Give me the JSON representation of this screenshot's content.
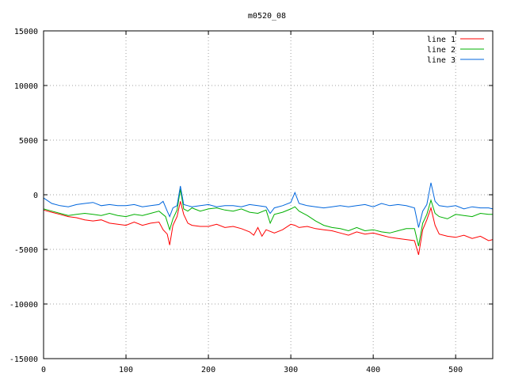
{
  "chart_data": {
    "type": "line",
    "title": "m0520_08",
    "xlabel": "",
    "ylabel": "",
    "xlim": [
      0,
      545
    ],
    "ylim": [
      -15000,
      15000
    ],
    "xticks": [
      0,
      100,
      200,
      300,
      400,
      500
    ],
    "yticks": [
      -15000,
      -10000,
      -5000,
      0,
      5000,
      10000,
      15000
    ],
    "grid": true,
    "legend_position": "top-right",
    "series": [
      {
        "name": "line 1",
        "color": "#ff0000",
        "points": [
          [
            0,
            -1400
          ],
          [
            10,
            -1600
          ],
          [
            20,
            -1800
          ],
          [
            30,
            -2000
          ],
          [
            40,
            -2100
          ],
          [
            50,
            -2300
          ],
          [
            60,
            -2400
          ],
          [
            70,
            -2300
          ],
          [
            80,
            -2600
          ],
          [
            90,
            -2700
          ],
          [
            100,
            -2800
          ],
          [
            110,
            -2500
          ],
          [
            120,
            -2800
          ],
          [
            130,
            -2600
          ],
          [
            140,
            -2500
          ],
          [
            145,
            -3200
          ],
          [
            150,
            -3600
          ],
          [
            153,
            -4600
          ],
          [
            157,
            -2800
          ],
          [
            162,
            -2000
          ],
          [
            166,
            -600
          ],
          [
            170,
            -1800
          ],
          [
            175,
            -2600
          ],
          [
            180,
            -2800
          ],
          [
            190,
            -2900
          ],
          [
            200,
            -2900
          ],
          [
            210,
            -2700
          ],
          [
            220,
            -3000
          ],
          [
            230,
            -2900
          ],
          [
            240,
            -3100
          ],
          [
            250,
            -3400
          ],
          [
            255,
            -3700
          ],
          [
            260,
            -3000
          ],
          [
            265,
            -3800
          ],
          [
            270,
            -3200
          ],
          [
            280,
            -3500
          ],
          [
            290,
            -3200
          ],
          [
            300,
            -2700
          ],
          [
            305,
            -2800
          ],
          [
            310,
            -3000
          ],
          [
            320,
            -2900
          ],
          [
            330,
            -3100
          ],
          [
            340,
            -3200
          ],
          [
            350,
            -3300
          ],
          [
            360,
            -3500
          ],
          [
            370,
            -3700
          ],
          [
            380,
            -3400
          ],
          [
            390,
            -3600
          ],
          [
            400,
            -3500
          ],
          [
            410,
            -3700
          ],
          [
            420,
            -3900
          ],
          [
            430,
            -4000
          ],
          [
            440,
            -4100
          ],
          [
            450,
            -4200
          ],
          [
            455,
            -5500
          ],
          [
            460,
            -3200
          ],
          [
            465,
            -2300
          ],
          [
            470,
            -1200
          ],
          [
            475,
            -2800
          ],
          [
            480,
            -3600
          ],
          [
            490,
            -3800
          ],
          [
            500,
            -3900
          ],
          [
            510,
            -3700
          ],
          [
            520,
            -4000
          ],
          [
            530,
            -3800
          ],
          [
            540,
            -4200
          ],
          [
            545,
            -4100
          ]
        ]
      },
      {
        "name": "line 2",
        "color": "#00b000",
        "points": [
          [
            0,
            -1300
          ],
          [
            10,
            -1500
          ],
          [
            20,
            -1700
          ],
          [
            30,
            -1900
          ],
          [
            40,
            -1800
          ],
          [
            50,
            -1700
          ],
          [
            60,
            -1800
          ],
          [
            70,
            -1900
          ],
          [
            80,
            -1700
          ],
          [
            90,
            -1900
          ],
          [
            100,
            -2000
          ],
          [
            110,
            -1800
          ],
          [
            120,
            -1900
          ],
          [
            130,
            -1700
          ],
          [
            140,
            -1500
          ],
          [
            148,
            -2000
          ],
          [
            153,
            -3200
          ],
          [
            157,
            -2200
          ],
          [
            162,
            -1400
          ],
          [
            166,
            500
          ],
          [
            170,
            -1300
          ],
          [
            175,
            -1500
          ],
          [
            180,
            -1200
          ],
          [
            190,
            -1500
          ],
          [
            200,
            -1300
          ],
          [
            210,
            -1200
          ],
          [
            220,
            -1400
          ],
          [
            230,
            -1500
          ],
          [
            240,
            -1300
          ],
          [
            250,
            -1600
          ],
          [
            260,
            -1700
          ],
          [
            270,
            -1400
          ],
          [
            275,
            -2600
          ],
          [
            280,
            -1800
          ],
          [
            290,
            -1600
          ],
          [
            300,
            -1300
          ],
          [
            305,
            -1100
          ],
          [
            310,
            -1500
          ],
          [
            320,
            -1900
          ],
          [
            330,
            -2400
          ],
          [
            340,
            -2800
          ],
          [
            350,
            -3000
          ],
          [
            360,
            -3100
          ],
          [
            370,
            -3300
          ],
          [
            380,
            -3000
          ],
          [
            390,
            -3300
          ],
          [
            400,
            -3200
          ],
          [
            410,
            -3400
          ],
          [
            420,
            -3500
          ],
          [
            430,
            -3300
          ],
          [
            440,
            -3100
          ],
          [
            450,
            -3100
          ],
          [
            455,
            -4700
          ],
          [
            460,
            -2600
          ],
          [
            465,
            -1800
          ],
          [
            470,
            -500
          ],
          [
            475,
            -1700
          ],
          [
            480,
            -2000
          ],
          [
            490,
            -2200
          ],
          [
            500,
            -1800
          ],
          [
            510,
            -1900
          ],
          [
            520,
            -2000
          ],
          [
            530,
            -1700
          ],
          [
            540,
            -1800
          ],
          [
            545,
            -1800
          ]
        ]
      },
      {
        "name": "line 3",
        "color": "#0066dd",
        "points": [
          [
            0,
            -300
          ],
          [
            10,
            -800
          ],
          [
            20,
            -1000
          ],
          [
            30,
            -1100
          ],
          [
            40,
            -900
          ],
          [
            50,
            -800
          ],
          [
            60,
            -700
          ],
          [
            70,
            -1000
          ],
          [
            80,
            -900
          ],
          [
            90,
            -1000
          ],
          [
            100,
            -1000
          ],
          [
            110,
            -900
          ],
          [
            120,
            -1100
          ],
          [
            130,
            -1000
          ],
          [
            140,
            -900
          ],
          [
            145,
            -600
          ],
          [
            150,
            -1500
          ],
          [
            153,
            -2000
          ],
          [
            157,
            -1200
          ],
          [
            162,
            -1000
          ],
          [
            166,
            800
          ],
          [
            170,
            -900
          ],
          [
            175,
            -1000
          ],
          [
            180,
            -1100
          ],
          [
            190,
            -1000
          ],
          [
            200,
            -900
          ],
          [
            210,
            -1100
          ],
          [
            220,
            -1000
          ],
          [
            230,
            -1000
          ],
          [
            240,
            -1100
          ],
          [
            250,
            -900
          ],
          [
            260,
            -1000
          ],
          [
            270,
            -1100
          ],
          [
            275,
            -1700
          ],
          [
            280,
            -1200
          ],
          [
            290,
            -1000
          ],
          [
            300,
            -700
          ],
          [
            305,
            200
          ],
          [
            310,
            -800
          ],
          [
            320,
            -1000
          ],
          [
            330,
            -1100
          ],
          [
            340,
            -1200
          ],
          [
            350,
            -1100
          ],
          [
            360,
            -1000
          ],
          [
            370,
            -1100
          ],
          [
            380,
            -1000
          ],
          [
            390,
            -900
          ],
          [
            400,
            -1100
          ],
          [
            410,
            -800
          ],
          [
            420,
            -1000
          ],
          [
            430,
            -900
          ],
          [
            440,
            -1000
          ],
          [
            450,
            -1200
          ],
          [
            455,
            -3000
          ],
          [
            460,
            -1500
          ],
          [
            465,
            -900
          ],
          [
            470,
            1100
          ],
          [
            475,
            -600
          ],
          [
            480,
            -1000
          ],
          [
            490,
            -1100
          ],
          [
            500,
            -1000
          ],
          [
            510,
            -1300
          ],
          [
            520,
            -1100
          ],
          [
            530,
            -1200
          ],
          [
            540,
            -1200
          ],
          [
            545,
            -1300
          ]
        ]
      }
    ]
  }
}
